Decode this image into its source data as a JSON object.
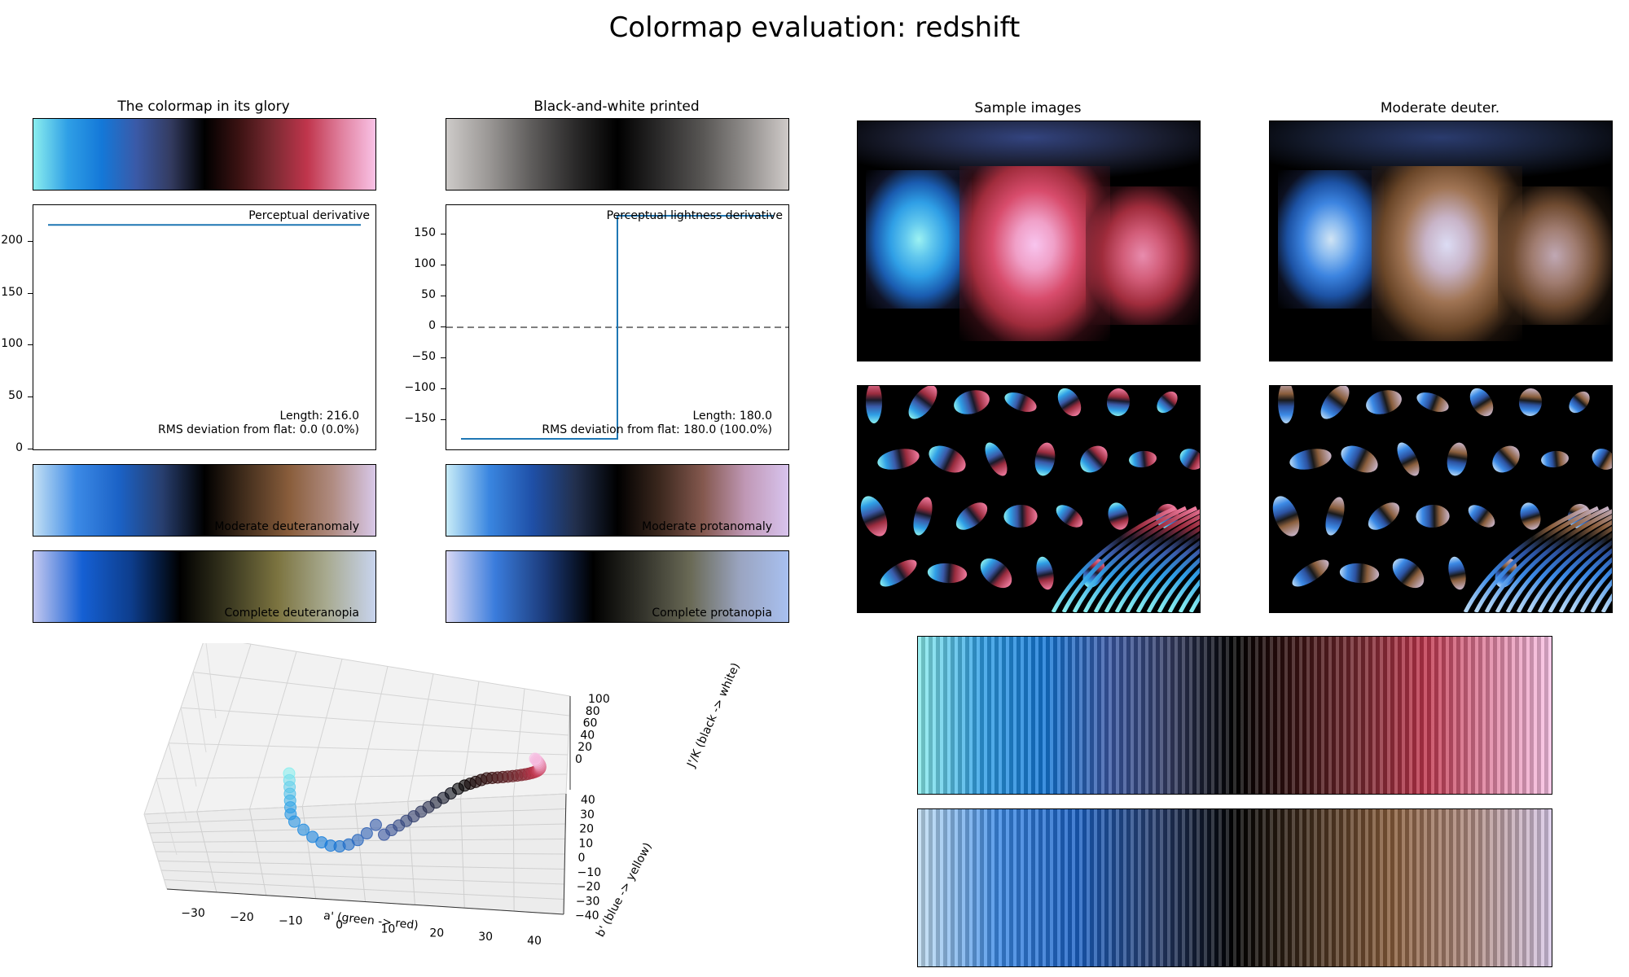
{
  "title": "Colormap evaluation: redshift",
  "colors": {
    "main": [
      "#8aeeee",
      "#2f9fe6",
      "#1478d8",
      "#3a5aa8",
      "#343c62",
      "#000000",
      "#3a1212",
      "#7a2a32",
      "#c0354c",
      "#e0809e",
      "#f9c2e6"
    ],
    "gray": [
      "#cdcac8",
      "#9a9795",
      "#5e5c5b",
      "#2b2a2a",
      "#000000",
      "#2c2b2b",
      "#585654",
      "#908d8b",
      "#cfcac8"
    ],
    "deutan_mod": [
      "#c4e0f4",
      "#3c8ae6",
      "#1b62c6",
      "#283f70",
      "#000000",
      "#46301e",
      "#8a5e3c",
      "#b08c82",
      "#d8c8e8"
    ],
    "deutan_full": [
      "#c4c8f0",
      "#1560d4",
      "#0d3d8c",
      "#000000",
      "#3a3820",
      "#7c7440",
      "#a8aa90",
      "#c8d4ee"
    ],
    "protan_mod": [
      "#c8ecf8",
      "#3a86e0",
      "#1f50a8",
      "#22304e",
      "#000000",
      "#3c281e",
      "#84584e",
      "#c098b6",
      "#d8c4ee"
    ],
    "protan_full": [
      "#d8d8f4",
      "#3a7cdc",
      "#1c3c7c",
      "#000000",
      "#32322a",
      "#6a6a56",
      "#9aa4c0",
      "#a8c0f0"
    ],
    "line": "#1f77b4"
  },
  "panels": {
    "glory": "The colormap in its glory",
    "bw": "Black-and-white printed",
    "samples": "Sample images",
    "deuter": "Moderate deuter.",
    "mod_deutan": "Moderate deuteranomaly",
    "full_deutan": "Complete deuteranopia",
    "mod_protan": "Moderate protanomaly",
    "full_protan": "Complete protanopia"
  },
  "chart_data": [
    {
      "type": "line",
      "title": "Perceptual derivative",
      "x": [
        0,
        1
      ],
      "y": [
        216.0,
        216.0
      ],
      "ylim": [
        0,
        235
      ],
      "yticks": [
        "0",
        "50",
        "100",
        "150",
        "200"
      ],
      "annotations": [
        "Length: 216.0",
        "RMS deviation from flat: 0.0 (0.0%)"
      ]
    },
    {
      "type": "line",
      "title": "Perceptual lightness derivative",
      "x": [
        0,
        0.5,
        0.5,
        1
      ],
      "y": [
        -180,
        -180,
        180,
        180
      ],
      "ylim": [
        -197,
        197
      ],
      "yticks": [
        "150",
        "100",
        "50",
        "0",
        "−50",
        "−100",
        "−150"
      ],
      "reference_line": 0,
      "annotations": [
        "Length: 180.0",
        "RMS deviation from flat: 180.0 (100.0%)"
      ]
    },
    {
      "type": "scatter",
      "xlabel": "a' (green -> red)",
      "ylabel": "b' (blue -> yellow)",
      "zlabel": "J'/K (black -> white)",
      "xticks": [
        "−30",
        "−20",
        "−10",
        "0",
        "10",
        "20",
        "30",
        "40"
      ],
      "yticks": [
        "40",
        "30",
        "20",
        "10",
        "0",
        "−10",
        "−20",
        "−30",
        "−40"
      ],
      "zticks": [
        "100",
        "80",
        "60",
        "40",
        "20",
        "0"
      ]
    }
  ]
}
